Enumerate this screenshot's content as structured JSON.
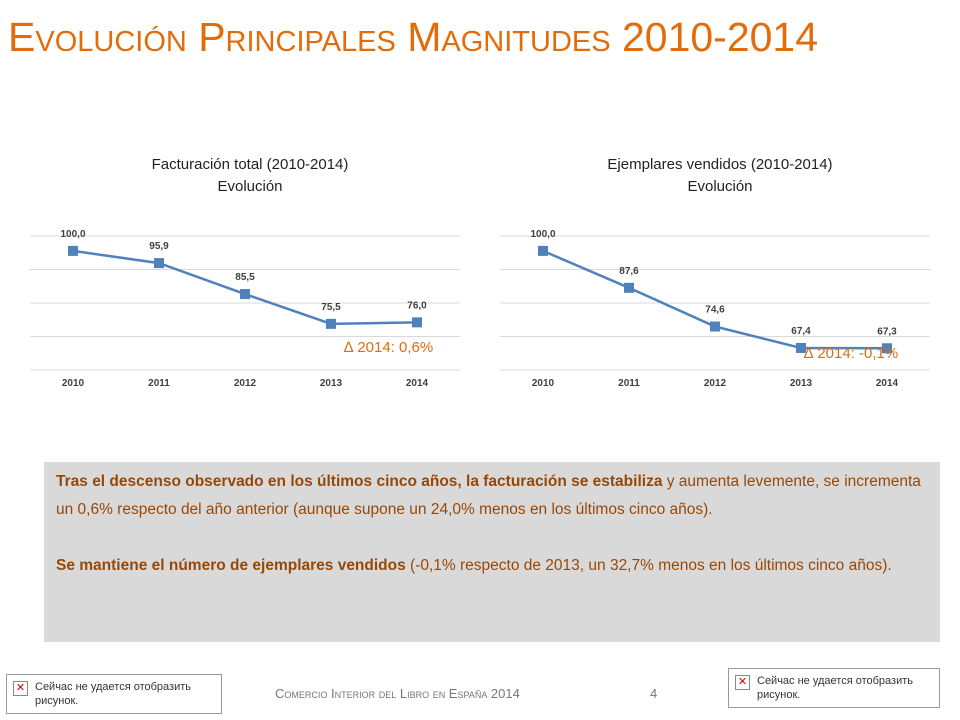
{
  "title": "Evolución Principales Magnitudes 2010-2014",
  "chart_data": [
    {
      "type": "line",
      "title": "Facturación total (2010-2014)",
      "subtitle": "Evolución",
      "categories": [
        "2010",
        "2011",
        "2012",
        "2013",
        "2014"
      ],
      "values": [
        100.0,
        95.9,
        85.5,
        75.5,
        76.0
      ],
      "value_labels": [
        "100,0",
        "95,9",
        "85,5",
        "75,5",
        "76,0"
      ],
      "ylim": [
        60,
        105
      ],
      "grid": true,
      "annotation": "∆ 2014:  0,6%",
      "color": "#4F81BD"
    },
    {
      "type": "line",
      "title": "Ejemplares vendidos (2010-2014)",
      "subtitle": "Evolución",
      "categories": [
        "2010",
        "2011",
        "2012",
        "2013",
        "2014"
      ],
      "values": [
        100.0,
        87.6,
        74.6,
        67.4,
        67.3
      ],
      "value_labels": [
        "100,0",
        "87,6",
        "74,6",
        "67,4",
        "67,3"
      ],
      "ylim": [
        60,
        105
      ],
      "grid": true,
      "annotation": "∆ 2014:  -0,1%",
      "color": "#4F81BD"
    }
  ],
  "textbox": {
    "p1_bold": "Tras el descenso observado en los últimos cinco años, la facturación se estabiliza",
    "p1_rest": " y aumenta levemente, se incrementa un 0,6% respecto del año anterior (aunque supone un 24,0% menos en los últimos cinco años).",
    "p2_bold": "Se mantiene el número de ejemplares vendidos",
    "p2_rest": " (-0,1% respecto de 2013, un 32,7% menos en los últimos cinco años)."
  },
  "footer": {
    "text": "Comercio Interior del Libro en España 2014",
    "page": "4"
  },
  "broken_images": [
    {
      "icon": "broken-image-icon",
      "text": "Сейчас не удается отобразить рисунок."
    },
    {
      "icon": "broken-image-icon",
      "text": "Сейчас не удается отобразить рисунок."
    }
  ],
  "colors": {
    "accent": "#E36C0A",
    "text_box_bg": "#D9D9D9",
    "text_box_fg": "#984806",
    "series": "#4F81BD"
  }
}
